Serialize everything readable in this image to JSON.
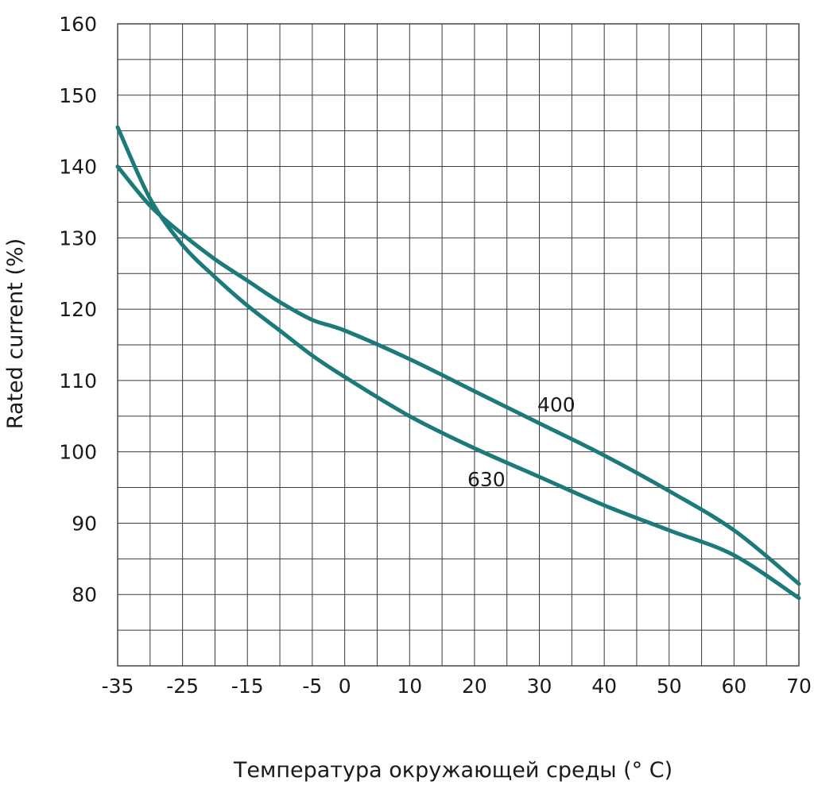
{
  "chart_data": {
    "type": "line",
    "title": "",
    "xlabel": "Температура окружающей среды (° С)",
    "ylabel": "Rated current (%)",
    "x_ticks": [
      "-35",
      "-25",
      "-15",
      "-5",
      "0",
      "10",
      "20",
      "30",
      "40",
      "50",
      "60",
      "70"
    ],
    "y_ticks": [
      "80",
      "90",
      "100",
      "110",
      "120",
      "130",
      "140",
      "150",
      "160"
    ],
    "ylim": [
      70,
      160
    ],
    "grid": true,
    "line_color": "#1c7a7a",
    "series": [
      {
        "name": "400",
        "x": [
          -35,
          -30,
          -25,
          -20,
          -15,
          -10,
          -5,
          0,
          10,
          20,
          30,
          40,
          50,
          60,
          70
        ],
        "y": [
          140,
          134.5,
          130.5,
          127,
          124,
          121,
          118.5,
          117,
          113,
          108.5,
          104,
          99.5,
          94.5,
          89,
          81.5
        ]
      },
      {
        "name": "630",
        "x": [
          -35,
          -30,
          -25,
          -20,
          -15,
          -10,
          -5,
          0,
          10,
          20,
          30,
          40,
          50,
          60,
          70
        ],
        "y": [
          145.5,
          135.5,
          129,
          124.5,
          120.5,
          117,
          113.5,
          110.5,
          105,
          100.5,
          96.5,
          92.5,
          89,
          85.5,
          79.5
        ]
      }
    ]
  }
}
